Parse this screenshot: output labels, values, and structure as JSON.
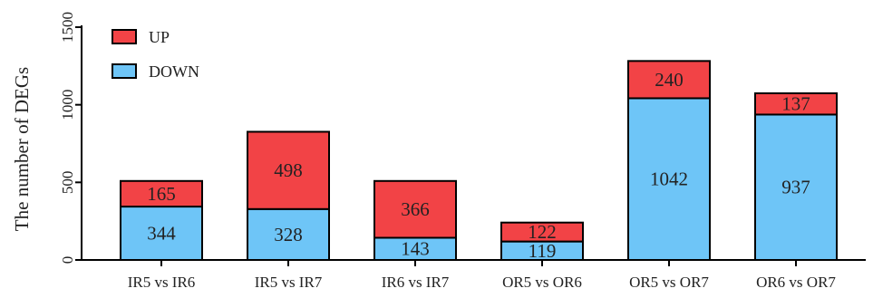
{
  "chart_data": {
    "type": "bar",
    "stacked": true,
    "categories": [
      "IR5 vs IR6",
      "IR5 vs IR7",
      "IR6 vs IR7",
      "OR5 vs OR6",
      "OR5 vs OR7",
      "OR6 vs OR7"
    ],
    "series": [
      {
        "name": "DOWN",
        "color": "#6ec5f7",
        "values": [
          344,
          328,
          143,
          119,
          1042,
          937
        ]
      },
      {
        "name": "UP",
        "color": "#f24346",
        "values": [
          165,
          498,
          366,
          122,
          240,
          137
        ]
      }
    ],
    "ylabel": "The number of DEGs",
    "xlabel": "",
    "ylim": [
      0,
      1500
    ],
    "yticks": [
      0,
      500,
      1000,
      1500
    ],
    "legend": {
      "position": "top-left",
      "order": [
        "UP",
        "DOWN"
      ]
    },
    "grid": false
  }
}
